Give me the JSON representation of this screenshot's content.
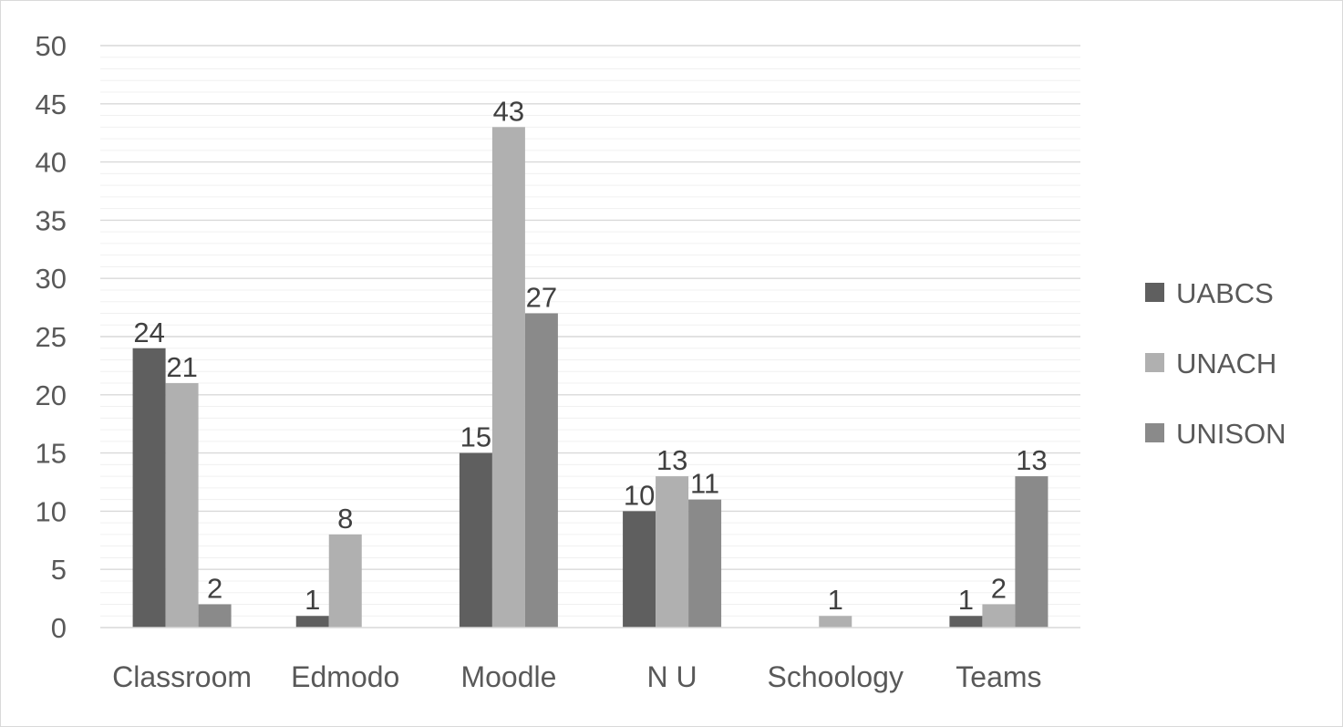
{
  "chart_data": {
    "type": "bar",
    "categories": [
      "Classroom",
      "Edmodo",
      "Moodle",
      "N U",
      "Schoology",
      "Teams"
    ],
    "series": [
      {
        "name": "UABCS",
        "color": "#5f5f5f",
        "values": [
          24,
          1,
          15,
          10,
          0,
          1
        ]
      },
      {
        "name": "UNACH",
        "color": "#b0b0b0",
        "values": [
          21,
          8,
          43,
          13,
          1,
          2
        ]
      },
      {
        "name": "UNISON",
        "color": "#8a8a8a",
        "values": [
          2,
          0,
          27,
          11,
          0,
          13
        ]
      }
    ],
    "data_labels": [
      [
        "24",
        "1",
        "15",
        "10",
        "",
        "1"
      ],
      [
        "21",
        "8",
        "43",
        "13",
        "1",
        "2"
      ],
      [
        "2",
        "",
        "27",
        "11",
        "",
        "13"
      ]
    ],
    "y_ticks": [
      "0",
      "5",
      "10",
      "15",
      "20",
      "25",
      "30",
      "35",
      "40",
      "45",
      "50"
    ],
    "ylim": [
      0,
      50
    ],
    "grid": true,
    "legend_position": "right"
  }
}
